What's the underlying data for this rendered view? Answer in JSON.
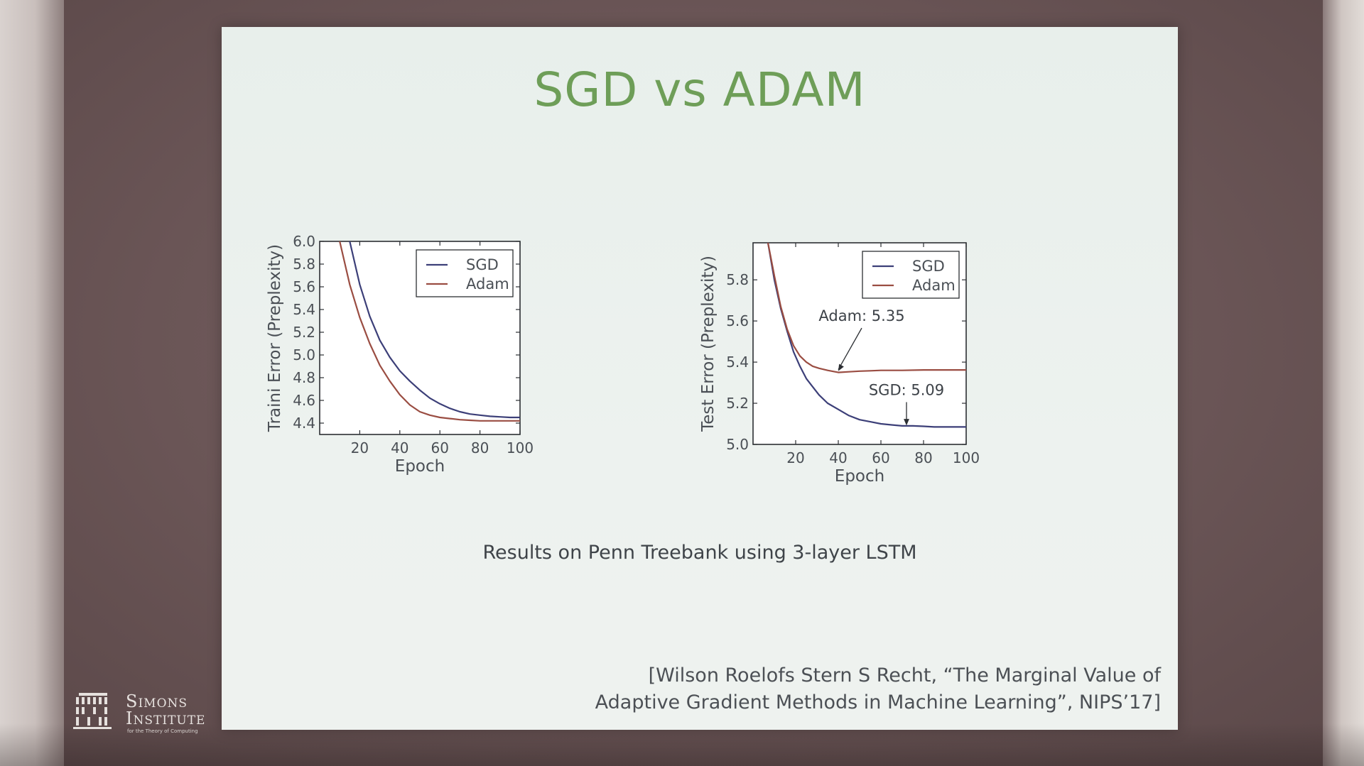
{
  "slide": {
    "title": "SGD vs ADAM",
    "caption": "Results on Penn Treebank using 3-layer LSTM",
    "citation_line1": "[Wilson Roelofs Stern S Recht, “The Marginal Value of",
    "citation_line2": "Adaptive Gradient Methods in Machine Learning”, NIPS’17]"
  },
  "logo": {
    "name_line1": "Simons",
    "name_line2": "Institute",
    "tagline": "for the Theory of Computing"
  },
  "colors": {
    "sgd": "#3c3f78",
    "adam": "#9a4d42",
    "title": "#6e9e58"
  },
  "chart_data": [
    {
      "type": "line",
      "xlabel": "Epoch",
      "ylabel": "Traini Error (Preplexity)",
      "xlim": [
        0,
        100
      ],
      "ylim": [
        4.3,
        6.0
      ],
      "xticks": [
        20,
        40,
        60,
        80,
        100
      ],
      "yticks": [
        4.4,
        4.6,
        4.8,
        5.0,
        5.2,
        5.4,
        5.6,
        5.8,
        6.0
      ],
      "legend_placement": "top-right",
      "series": [
        {
          "name": "SGD",
          "color": "#3c3f78",
          "x": [
            15,
            20,
            25,
            30,
            35,
            40,
            45,
            50,
            55,
            60,
            65,
            70,
            75,
            80,
            85,
            90,
            95,
            100
          ],
          "y": [
            6.0,
            5.62,
            5.34,
            5.13,
            4.98,
            4.86,
            4.77,
            4.69,
            4.62,
            4.57,
            4.53,
            4.5,
            4.48,
            4.47,
            4.46,
            4.455,
            4.45,
            4.45
          ]
        },
        {
          "name": "Adam",
          "color": "#9a4d42",
          "x": [
            10,
            15,
            20,
            25,
            30,
            35,
            40,
            45,
            50,
            55,
            60,
            65,
            70,
            75,
            80,
            85,
            90,
            95,
            100
          ],
          "y": [
            6.0,
            5.62,
            5.33,
            5.1,
            4.91,
            4.77,
            4.65,
            4.56,
            4.5,
            4.47,
            4.45,
            4.44,
            4.43,
            4.425,
            4.42,
            4.42,
            4.42,
            4.42,
            4.42
          ]
        }
      ]
    },
    {
      "type": "line",
      "xlabel": "Epoch",
      "ylabel": "Test Error (Preplexity)",
      "xlim": [
        0,
        100
      ],
      "ylim": [
        5.0,
        5.98
      ],
      "xticks": [
        20,
        40,
        60,
        80,
        100
      ],
      "yticks": [
        5.0,
        5.2,
        5.4,
        5.6,
        5.8
      ],
      "legend_placement": "top-right",
      "series": [
        {
          "name": "SGD",
          "color": "#3c3f78",
          "x": [
            7,
            10,
            13,
            16,
            19,
            22,
            25,
            28,
            31,
            35,
            40,
            45,
            50,
            55,
            60,
            65,
            70,
            75,
            80,
            85,
            90,
            95,
            100
          ],
          "y": [
            5.98,
            5.8,
            5.66,
            5.55,
            5.45,
            5.38,
            5.32,
            5.28,
            5.24,
            5.2,
            5.17,
            5.14,
            5.12,
            5.11,
            5.1,
            5.095,
            5.09,
            5.09,
            5.088,
            5.085,
            5.085,
            5.085,
            5.085
          ]
        },
        {
          "name": "Adam",
          "color": "#9a4d42",
          "x": [
            7,
            10,
            13,
            16,
            19,
            22,
            25,
            28,
            31,
            35,
            40,
            45,
            50,
            55,
            60,
            70,
            80,
            90,
            100
          ],
          "y": [
            5.98,
            5.82,
            5.67,
            5.56,
            5.48,
            5.43,
            5.4,
            5.38,
            5.37,
            5.36,
            5.35,
            5.353,
            5.356,
            5.358,
            5.36,
            5.36,
            5.362,
            5.362,
            5.362
          ]
        }
      ],
      "annotations": [
        {
          "text": "Adam: 5.35",
          "x": 40,
          "y": 5.35,
          "text_x": 51,
          "text_y": 5.6
        },
        {
          "text": "SGD: 5.09",
          "x": 72,
          "y": 5.085,
          "text_x": 72,
          "text_y": 5.24
        }
      ]
    }
  ]
}
